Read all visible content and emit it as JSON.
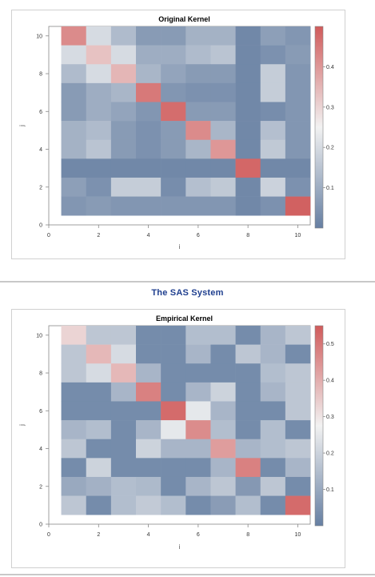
{
  "page": {
    "system_title": "The SAS System"
  },
  "colors": {
    "low": "#667fa2",
    "mid": "#f2f2f2",
    "high": "#d05b5b",
    "axis": "#888888",
    "panel_border": "#d0d0d0",
    "system_title": "#1f3f8f"
  },
  "chart_data": [
    {
      "type": "heatmap",
      "title": "Original Kernel",
      "xlabel": "i",
      "ylabel": "j",
      "xlim": [
        0,
        10.5
      ],
      "ylim": [
        0,
        10.5
      ],
      "x_ticks": [
        0,
        2,
        4,
        6,
        8,
        10
      ],
      "y_ticks": [
        0,
        2,
        4,
        6,
        8,
        10
      ],
      "x": [
        1,
        2,
        3,
        4,
        5,
        6,
        7,
        8,
        9,
        10
      ],
      "y": [
        10,
        9,
        8,
        7,
        6,
        5,
        4,
        3,
        2,
        1
      ],
      "z": [
        [
          0.42,
          0.2,
          0.13,
          0.06,
          0.06,
          0.11,
          0.11,
          0.02,
          0.07,
          0.05
        ],
        [
          0.2,
          0.33,
          0.2,
          0.1,
          0.1,
          0.13,
          0.15,
          0.02,
          0.04,
          0.06
        ],
        [
          0.13,
          0.2,
          0.35,
          0.12,
          0.08,
          0.06,
          0.06,
          0.02,
          0.17,
          0.05
        ],
        [
          0.06,
          0.1,
          0.12,
          0.45,
          0.05,
          0.04,
          0.04,
          0.02,
          0.17,
          0.05
        ],
        [
          0.06,
          0.1,
          0.08,
          0.05,
          0.47,
          0.06,
          0.06,
          0.02,
          0.03,
          0.05
        ],
        [
          0.11,
          0.13,
          0.06,
          0.04,
          0.06,
          0.42,
          0.12,
          0.02,
          0.14,
          0.05
        ],
        [
          0.11,
          0.15,
          0.06,
          0.04,
          0.06,
          0.12,
          0.4,
          0.02,
          0.16,
          0.05
        ],
        [
          0.02,
          0.02,
          0.02,
          0.02,
          0.02,
          0.02,
          0.02,
          0.48,
          0.02,
          0.02
        ],
        [
          0.07,
          0.04,
          0.17,
          0.17,
          0.03,
          0.14,
          0.16,
          0.02,
          0.18,
          0.04
        ],
        [
          0.05,
          0.06,
          0.05,
          0.05,
          0.05,
          0.05,
          0.05,
          0.02,
          0.04,
          0.49
        ]
      ],
      "colorbar": {
        "range": [
          0.0,
          0.5
        ],
        "ticks": [
          0.1,
          0.2,
          0.3,
          0.4
        ]
      },
      "grid": false
    },
    {
      "type": "heatmap",
      "title": "Empirical Kernel",
      "xlabel": "i",
      "ylabel": "j",
      "xlim": [
        0,
        10.5
      ],
      "ylim": [
        0,
        10.5
      ],
      "x_ticks": [
        0,
        2,
        4,
        6,
        8,
        10
      ],
      "y_ticks": [
        0,
        2,
        4,
        6,
        8,
        10
      ],
      "x": [
        1,
        2,
        3,
        4,
        5,
        6,
        7,
        8,
        9,
        10
      ],
      "y": [
        10,
        9,
        8,
        7,
        6,
        5,
        4,
        3,
        2,
        1
      ],
      "z": [
        [
          0.33,
          0.17,
          0.17,
          0.03,
          0.03,
          0.15,
          0.15,
          0.03,
          0.13,
          0.17
        ],
        [
          0.17,
          0.38,
          0.22,
          0.03,
          0.03,
          0.13,
          0.03,
          0.17,
          0.13,
          0.03
        ],
        [
          0.17,
          0.22,
          0.38,
          0.13,
          0.03,
          0.03,
          0.03,
          0.03,
          0.15,
          0.17
        ],
        [
          0.03,
          0.03,
          0.13,
          0.48,
          0.03,
          0.13,
          0.2,
          0.03,
          0.13,
          0.17
        ],
        [
          0.03,
          0.03,
          0.03,
          0.03,
          0.52,
          0.25,
          0.13,
          0.03,
          0.03,
          0.17
        ],
        [
          0.13,
          0.15,
          0.03,
          0.13,
          0.25,
          0.46,
          0.15,
          0.03,
          0.15,
          0.03
        ],
        [
          0.17,
          0.03,
          0.03,
          0.2,
          0.13,
          0.13,
          0.43,
          0.13,
          0.15,
          0.17
        ],
        [
          0.03,
          0.2,
          0.03,
          0.03,
          0.03,
          0.03,
          0.13,
          0.48,
          0.03,
          0.13
        ],
        [
          0.1,
          0.12,
          0.15,
          0.14,
          0.03,
          0.13,
          0.17,
          0.06,
          0.17,
          0.03
        ],
        [
          0.17,
          0.03,
          0.15,
          0.18,
          0.15,
          0.03,
          0.07,
          0.15,
          0.03,
          0.52
        ]
      ],
      "colorbar": {
        "range": [
          0.0,
          0.55
        ],
        "ticks": [
          0.1,
          0.2,
          0.3,
          0.4,
          0.5
        ]
      },
      "grid": false
    }
  ]
}
